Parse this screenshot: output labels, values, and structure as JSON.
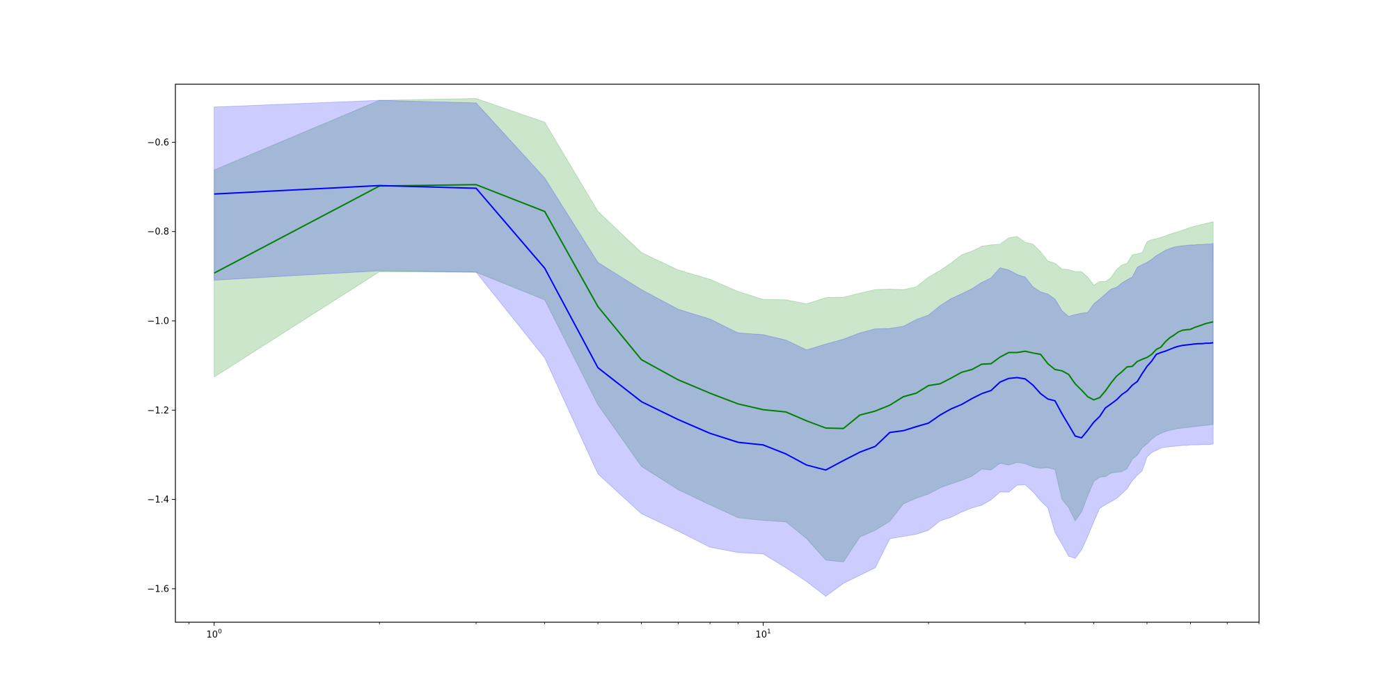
{
  "chart_data": {
    "type": "line",
    "title": "",
    "xlabel": "",
    "ylabel": "",
    "xscale": "log",
    "xlim": [
      0.85,
      80
    ],
    "ylim": [
      -1.675,
      -0.47
    ],
    "grid": false,
    "x": [
      1,
      2,
      3,
      4,
      5,
      6,
      7,
      8,
      9,
      10,
      11,
      12,
      13,
      14,
      15,
      16,
      17,
      18,
      19,
      20,
      21,
      22,
      23,
      24,
      25,
      26,
      27,
      28,
      29,
      30,
      31,
      32,
      33,
      34,
      35,
      36,
      37,
      38,
      39,
      40,
      41,
      42,
      43,
      44,
      45,
      46,
      47,
      48,
      49,
      50,
      51,
      52,
      53,
      54,
      55,
      56,
      57,
      58,
      59,
      60,
      61,
      62,
      63,
      64,
      65,
      66
    ],
    "x_tick_labels": [
      {
        "value": 1,
        "base": "10",
        "exp": "0"
      },
      {
        "value": 10,
        "base": "10",
        "exp": "1"
      }
    ],
    "y_ticks": [
      -1.6,
      -1.4,
      -1.2,
      -1.0,
      -0.8,
      -0.6
    ],
    "y_tick_labels": [
      "−1.6",
      "−1.4",
      "−1.2",
      "−1.0",
      "−0.8",
      "−0.6"
    ],
    "series": [
      {
        "color": "#008000",
        "band_color": "#008000",
        "band_opacity": 0.2,
        "mean": [
          -0.893,
          -0.698,
          -0.695,
          -0.755,
          -0.968,
          -1.087,
          -1.132,
          -1.162,
          -1.186,
          -1.199,
          -1.204,
          -1.224,
          -1.24,
          -1.241,
          -1.211,
          -1.202,
          -1.189,
          -1.17,
          -1.162,
          -1.145,
          -1.141,
          -1.128,
          -1.115,
          -1.109,
          -1.097,
          -1.096,
          -1.081,
          -1.071,
          -1.071,
          -1.068,
          -1.072,
          -1.075,
          -1.096,
          -1.109,
          -1.112,
          -1.12,
          -1.141,
          -1.155,
          -1.17,
          -1.177,
          -1.172,
          -1.157,
          -1.139,
          -1.124,
          -1.114,
          -1.103,
          -1.102,
          -1.091,
          -1.086,
          -1.082,
          -1.075,
          -1.064,
          -1.059,
          -1.047,
          -1.038,
          -1.032,
          -1.025,
          -1.021,
          -1.02,
          -1.019,
          -1.015,
          -1.012,
          -1.009,
          -1.006,
          -1.004,
          -1.002
        ],
        "upper": [
          -0.662,
          -0.506,
          -0.502,
          -0.555,
          -0.755,
          -0.847,
          -0.886,
          -0.907,
          -0.934,
          -0.952,
          -0.953,
          -0.962,
          -0.948,
          -0.947,
          -0.938,
          -0.93,
          -0.929,
          -0.93,
          -0.924,
          -0.902,
          -0.887,
          -0.87,
          -0.852,
          -0.844,
          -0.833,
          -0.83,
          -0.828,
          -0.814,
          -0.811,
          -0.824,
          -0.828,
          -0.845,
          -0.866,
          -0.871,
          -0.884,
          -0.885,
          -0.89,
          -0.89,
          -0.902,
          -0.92,
          -0.912,
          -0.912,
          -0.903,
          -0.885,
          -0.875,
          -0.871,
          -0.852,
          -0.85,
          -0.847,
          -0.823,
          -0.818,
          -0.816,
          -0.813,
          -0.81,
          -0.806,
          -0.803,
          -0.8,
          -0.797,
          -0.794,
          -0.791,
          -0.788,
          -0.786,
          -0.784,
          -0.782,
          -0.78,
          -0.778
        ],
        "lower": [
          -1.126,
          -0.89,
          -0.891,
          -0.953,
          -1.188,
          -1.326,
          -1.378,
          -1.412,
          -1.441,
          -1.447,
          -1.45,
          -1.488,
          -1.536,
          -1.54,
          -1.484,
          -1.469,
          -1.449,
          -1.41,
          -1.397,
          -1.388,
          -1.374,
          -1.365,
          -1.357,
          -1.348,
          -1.332,
          -1.334,
          -1.319,
          -1.323,
          -1.317,
          -1.32,
          -1.327,
          -1.33,
          -1.329,
          -1.333,
          -1.4,
          -1.418,
          -1.448,
          -1.428,
          -1.392,
          -1.36,
          -1.35,
          -1.349,
          -1.341,
          -1.339,
          -1.338,
          -1.331,
          -1.31,
          -1.301,
          -1.284,
          -1.276,
          -1.265,
          -1.257,
          -1.252,
          -1.248,
          -1.245,
          -1.243,
          -1.241,
          -1.24,
          -1.239,
          -1.238,
          -1.237,
          -1.236,
          -1.235,
          -1.234,
          -1.233,
          -1.232
        ]
      },
      {
        "color": "#0000ff",
        "band_color": "#0000ff",
        "band_opacity": 0.2,
        "mean": [
          -0.716,
          -0.697,
          -0.703,
          -0.882,
          -1.105,
          -1.181,
          -1.221,
          -1.252,
          -1.272,
          -1.278,
          -1.298,
          -1.323,
          -1.334,
          -1.313,
          -1.294,
          -1.281,
          -1.25,
          -1.246,
          -1.237,
          -1.229,
          -1.211,
          -1.197,
          -1.187,
          -1.174,
          -1.163,
          -1.156,
          -1.137,
          -1.129,
          -1.127,
          -1.13,
          -1.144,
          -1.163,
          -1.175,
          -1.179,
          -1.208,
          -1.233,
          -1.258,
          -1.262,
          -1.245,
          -1.227,
          -1.214,
          -1.195,
          -1.186,
          -1.177,
          -1.165,
          -1.157,
          -1.144,
          -1.136,
          -1.118,
          -1.102,
          -1.09,
          -1.075,
          -1.071,
          -1.068,
          -1.064,
          -1.06,
          -1.057,
          -1.055,
          -1.054,
          -1.053,
          -1.052,
          -1.051,
          -1.051,
          -1.05,
          -1.05,
          -1.049
        ],
        "upper": [
          -0.521,
          -0.506,
          -0.512,
          -0.68,
          -0.869,
          -0.93,
          -0.974,
          -0.996,
          -1.027,
          -1.031,
          -1.043,
          -1.065,
          -1.052,
          -1.041,
          -1.027,
          -1.018,
          -1.017,
          -1.012,
          -0.997,
          -0.987,
          -0.966,
          -0.95,
          -0.939,
          -0.928,
          -0.914,
          -0.904,
          -0.881,
          -0.886,
          -0.896,
          -0.902,
          -0.924,
          -0.935,
          -0.94,
          -0.951,
          -0.977,
          -0.99,
          -0.986,
          -0.983,
          -0.981,
          -0.962,
          -0.951,
          -0.94,
          -0.929,
          -0.925,
          -0.915,
          -0.908,
          -0.902,
          -0.88,
          -0.874,
          -0.869,
          -0.862,
          -0.854,
          -0.848,
          -0.842,
          -0.838,
          -0.835,
          -0.833,
          -0.832,
          -0.831,
          -0.83,
          -0.83,
          -0.829,
          -0.829,
          -0.828,
          -0.828,
          -0.827
        ],
        "lower": [
          -0.909,
          -0.888,
          -0.891,
          -1.083,
          -1.343,
          -1.432,
          -1.471,
          -1.507,
          -1.519,
          -1.522,
          -1.553,
          -1.584,
          -1.617,
          -1.588,
          -1.57,
          -1.553,
          -1.488,
          -1.483,
          -1.478,
          -1.469,
          -1.448,
          -1.44,
          -1.428,
          -1.419,
          -1.413,
          -1.401,
          -1.383,
          -1.384,
          -1.368,
          -1.367,
          -1.383,
          -1.403,
          -1.419,
          -1.474,
          -1.5,
          -1.527,
          -1.532,
          -1.513,
          -1.483,
          -1.45,
          -1.42,
          -1.412,
          -1.405,
          -1.398,
          -1.387,
          -1.376,
          -1.358,
          -1.346,
          -1.336,
          -1.305,
          -1.295,
          -1.29,
          -1.285,
          -1.283,
          -1.282,
          -1.281,
          -1.28,
          -1.279,
          -1.279,
          -1.278,
          -1.278,
          -1.278,
          -1.277,
          -1.277,
          -1.277,
          -1.276
        ]
      }
    ]
  }
}
